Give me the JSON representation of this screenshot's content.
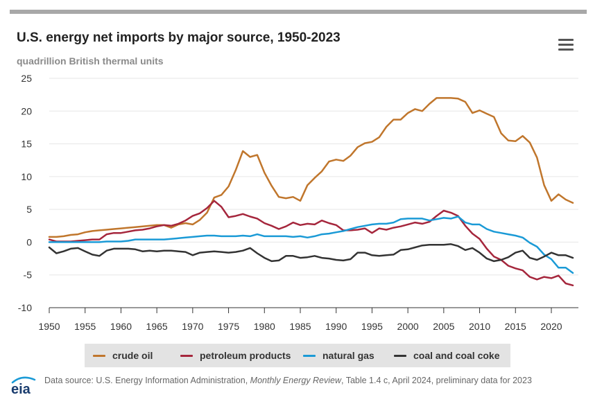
{
  "header": {
    "title": "U.S. energy net imports by major source, 1950-2023",
    "subtitle": "quadrillion British thermal units"
  },
  "menu_icon": "hamburger-menu-icon",
  "colors": {
    "crude_oil": "#c0762c",
    "petroleum_products": "#a5263c",
    "natural_gas": "#1a9ad6",
    "coal": "#333333"
  },
  "chart_data": {
    "type": "line",
    "title": "U.S. energy net imports by major source, 1950-2023",
    "subtitle": "quadrillion British thermal units",
    "xlabel": "",
    "ylabel": "",
    "xlim": [
      1950,
      2023
    ],
    "ylim": [
      -10,
      25
    ],
    "x_ticks": [
      1950,
      1955,
      1960,
      1965,
      1970,
      1975,
      1980,
      1985,
      1990,
      1995,
      2000,
      2005,
      2010,
      2015,
      2020
    ],
    "y_ticks": [
      25,
      20,
      15,
      10,
      5,
      0,
      -5,
      -10
    ],
    "grid": "horizontal",
    "legend_position": "bottom",
    "x": [
      1950,
      1951,
      1952,
      1953,
      1954,
      1955,
      1956,
      1957,
      1958,
      1959,
      1960,
      1961,
      1962,
      1963,
      1964,
      1965,
      1966,
      1967,
      1968,
      1969,
      1970,
      1971,
      1972,
      1973,
      1974,
      1975,
      1976,
      1977,
      1978,
      1979,
      1980,
      1981,
      1982,
      1983,
      1984,
      1985,
      1986,
      1987,
      1988,
      1989,
      1990,
      1991,
      1992,
      1993,
      1994,
      1995,
      1996,
      1997,
      1998,
      1999,
      2000,
      2001,
      2002,
      2003,
      2004,
      2005,
      2006,
      2007,
      2008,
      2009,
      2010,
      2011,
      2012,
      2013,
      2014,
      2015,
      2016,
      2017,
      2018,
      2019,
      2020,
      2021,
      2022,
      2023
    ],
    "series": [
      {
        "name": "crude oil",
        "values": [
          0.8,
          0.8,
          0.9,
          1.1,
          1.2,
          1.5,
          1.7,
          1.8,
          1.9,
          2.0,
          2.1,
          2.2,
          2.3,
          2.4,
          2.5,
          2.6,
          2.6,
          2.2,
          2.7,
          2.9,
          2.7,
          3.4,
          4.5,
          6.8,
          7.2,
          8.5,
          11.0,
          13.9,
          13.0,
          13.3,
          10.6,
          8.6,
          6.9,
          6.7,
          6.9,
          6.3,
          8.7,
          9.8,
          10.8,
          12.3,
          12.6,
          12.4,
          13.2,
          14.5,
          15.1,
          15.3,
          16.0,
          17.6,
          18.7,
          18.7,
          19.7,
          20.3,
          20.0,
          21.1,
          22.0,
          22.0,
          22.0,
          21.9,
          21.4,
          19.7,
          20.1,
          19.6,
          19.1,
          16.6,
          15.5,
          15.4,
          16.2,
          15.2,
          12.9,
          8.7,
          6.3,
          7.3,
          6.5,
          6.0
        ]
      },
      {
        "name": "petroleum products",
        "values": [
          0.4,
          0.1,
          0.1,
          0.1,
          0.2,
          0.3,
          0.4,
          0.4,
          1.2,
          1.4,
          1.4,
          1.6,
          1.8,
          1.9,
          2.1,
          2.4,
          2.6,
          2.5,
          2.8,
          3.3,
          4.0,
          4.4,
          5.2,
          6.3,
          5.4,
          3.8,
          4.0,
          4.3,
          3.9,
          3.6,
          2.9,
          2.5,
          2.0,
          2.4,
          3.0,
          2.6,
          2.8,
          2.7,
          3.3,
          2.9,
          2.6,
          1.8,
          1.8,
          1.9,
          2.1,
          1.4,
          2.1,
          1.9,
          2.2,
          2.4,
          2.7,
          3.0,
          2.8,
          3.1,
          4.0,
          4.8,
          4.5,
          4.0,
          2.5,
          1.3,
          0.5,
          -1.0,
          -2.2,
          -2.7,
          -3.6,
          -4.0,
          -4.3,
          -5.3,
          -5.7,
          -5.3,
          -5.5,
          -5.1,
          -6.3,
          -6.6
        ]
      },
      {
        "name": "natural gas",
        "values": [
          0.0,
          0.0,
          0.0,
          0.0,
          0.0,
          0.0,
          0.0,
          0.0,
          0.1,
          0.1,
          0.1,
          0.2,
          0.4,
          0.4,
          0.4,
          0.4,
          0.4,
          0.5,
          0.6,
          0.7,
          0.8,
          0.9,
          1.0,
          1.0,
          0.9,
          0.9,
          0.9,
          1.0,
          0.9,
          1.2,
          0.9,
          0.9,
          0.9,
          0.9,
          0.8,
          0.9,
          0.7,
          0.9,
          1.2,
          1.3,
          1.5,
          1.7,
          2.0,
          2.3,
          2.5,
          2.7,
          2.8,
          2.8,
          3.0,
          3.5,
          3.6,
          3.6,
          3.6,
          3.3,
          3.5,
          3.7,
          3.6,
          3.9,
          3.0,
          2.7,
          2.7,
          2.0,
          1.6,
          1.4,
          1.2,
          1.0,
          0.7,
          -0.1,
          -0.7,
          -1.9,
          -2.6,
          -3.9,
          -3.9,
          -4.7
        ]
      },
      {
        "name": "coal and coal coke",
        "values": [
          -0.8,
          -1.7,
          -1.4,
          -1.0,
          -0.9,
          -1.4,
          -1.9,
          -2.1,
          -1.3,
          -1.0,
          -1.0,
          -1.0,
          -1.1,
          -1.4,
          -1.3,
          -1.4,
          -1.3,
          -1.3,
          -1.4,
          -1.5,
          -2.0,
          -1.6,
          -1.5,
          -1.4,
          -1.5,
          -1.6,
          -1.5,
          -1.3,
          -0.9,
          -1.7,
          -2.4,
          -2.9,
          -2.8,
          -2.1,
          -2.1,
          -2.4,
          -2.3,
          -2.1,
          -2.4,
          -2.5,
          -2.7,
          -2.8,
          -2.6,
          -1.6,
          -1.6,
          -2.0,
          -2.1,
          -2.0,
          -1.9,
          -1.2,
          -1.1,
          -0.8,
          -0.5,
          -0.4,
          -0.4,
          -0.4,
          -0.3,
          -0.6,
          -1.2,
          -0.9,
          -1.6,
          -2.5,
          -2.9,
          -2.7,
          -2.3,
          -1.6,
          -1.3,
          -2.4,
          -2.7,
          -2.2,
          -1.6,
          -2.0,
          -2.0,
          -2.4
        ]
      }
    ]
  },
  "legend": {
    "items": [
      "crude oil",
      "petroleum products",
      "natural gas",
      "coal and coal coke"
    ]
  },
  "footer": {
    "logo_text": "eia",
    "source_prefix": "Data source: U.S. Energy Information Administration, ",
    "source_publication": "Monthly Energy Review",
    "source_suffix": ", Table 1.4 c, April 2024, preliminary data for 2023"
  }
}
